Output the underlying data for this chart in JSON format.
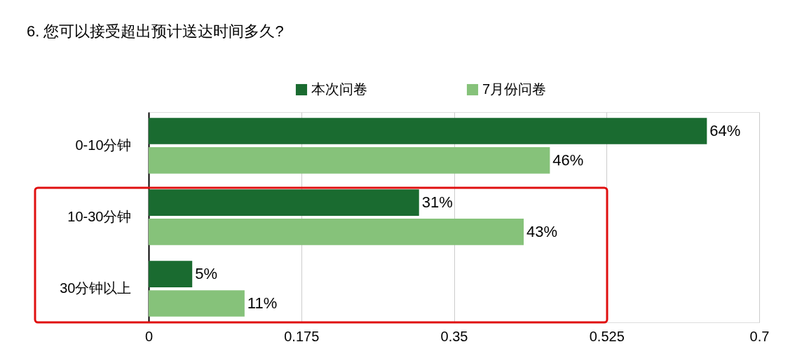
{
  "chart_data": {
    "type": "bar",
    "orientation": "horizontal",
    "title": "6. 您可以接受超出预计送达时间多久?",
    "categories": [
      "0-10分钟",
      "10-30分钟",
      "30分钟以上"
    ],
    "series": [
      {
        "name": "本次问卷",
        "color": "#1a6b30",
        "values": [
          0.64,
          0.31,
          0.05
        ],
        "value_labels": [
          "64%",
          "31%",
          "5%"
        ]
      },
      {
        "name": "7月份问卷",
        "color": "#86c27a",
        "values": [
          0.46,
          0.43,
          0.11
        ],
        "value_labels": [
          "46%",
          "43%",
          "11%"
        ]
      }
    ],
    "xlim": [
      0,
      0.7
    ],
    "xticks": [
      0,
      0.175,
      0.35,
      0.525,
      0.7
    ],
    "grid": "x",
    "legend": "top"
  }
}
